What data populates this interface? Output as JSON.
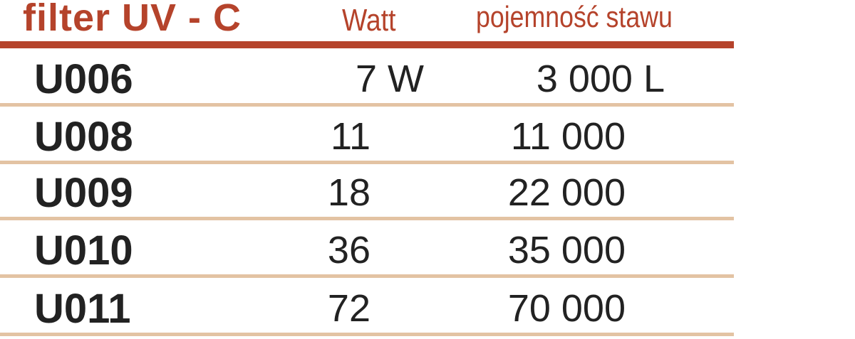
{
  "header": {
    "title": "filter UV - C",
    "watt": "Watt",
    "capacity": "pojemność stawu"
  },
  "colors": {
    "accent": "#b5432b",
    "separator": "#e3c3a3",
    "text": "#222222"
  },
  "rows": [
    {
      "code": "U006",
      "watt": "7 W",
      "capacity": "3 000 L"
    },
    {
      "code": "U008",
      "watt": "11",
      "capacity": "11 000"
    },
    {
      "code": "U009",
      "watt": "18",
      "capacity": "22 000"
    },
    {
      "code": "U010",
      "watt": "36",
      "capacity": "35 000"
    },
    {
      "code": "U011",
      "watt": "72",
      "capacity": "70 000"
    }
  ]
}
